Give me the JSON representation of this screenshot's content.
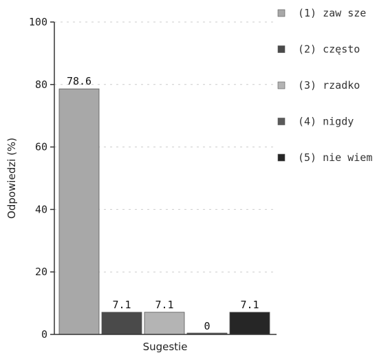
{
  "chart_data": {
    "type": "bar",
    "title": "",
    "xlabel": "Sugestie",
    "ylabel": "Odpowiedzi (%)",
    "ylim": [
      0,
      100
    ],
    "yticks": [
      0,
      20,
      40,
      60,
      80,
      100
    ],
    "grid": true,
    "legend_position": "right",
    "categories": [
      "(1) zaw sze",
      "(2) często",
      "(3) rzadko",
      "(4) nigdy",
      "(5) nie wiem"
    ],
    "values": [
      78.6,
      7.1,
      7.1,
      0,
      7.1
    ],
    "data_labels": [
      "78.6",
      "7.1",
      "7.1",
      "0",
      "7.1"
    ],
    "colors": [
      "#a8a8a8",
      "#4a4a4a",
      "#b4b4b4",
      "#5a5a5a",
      "#262626"
    ]
  }
}
